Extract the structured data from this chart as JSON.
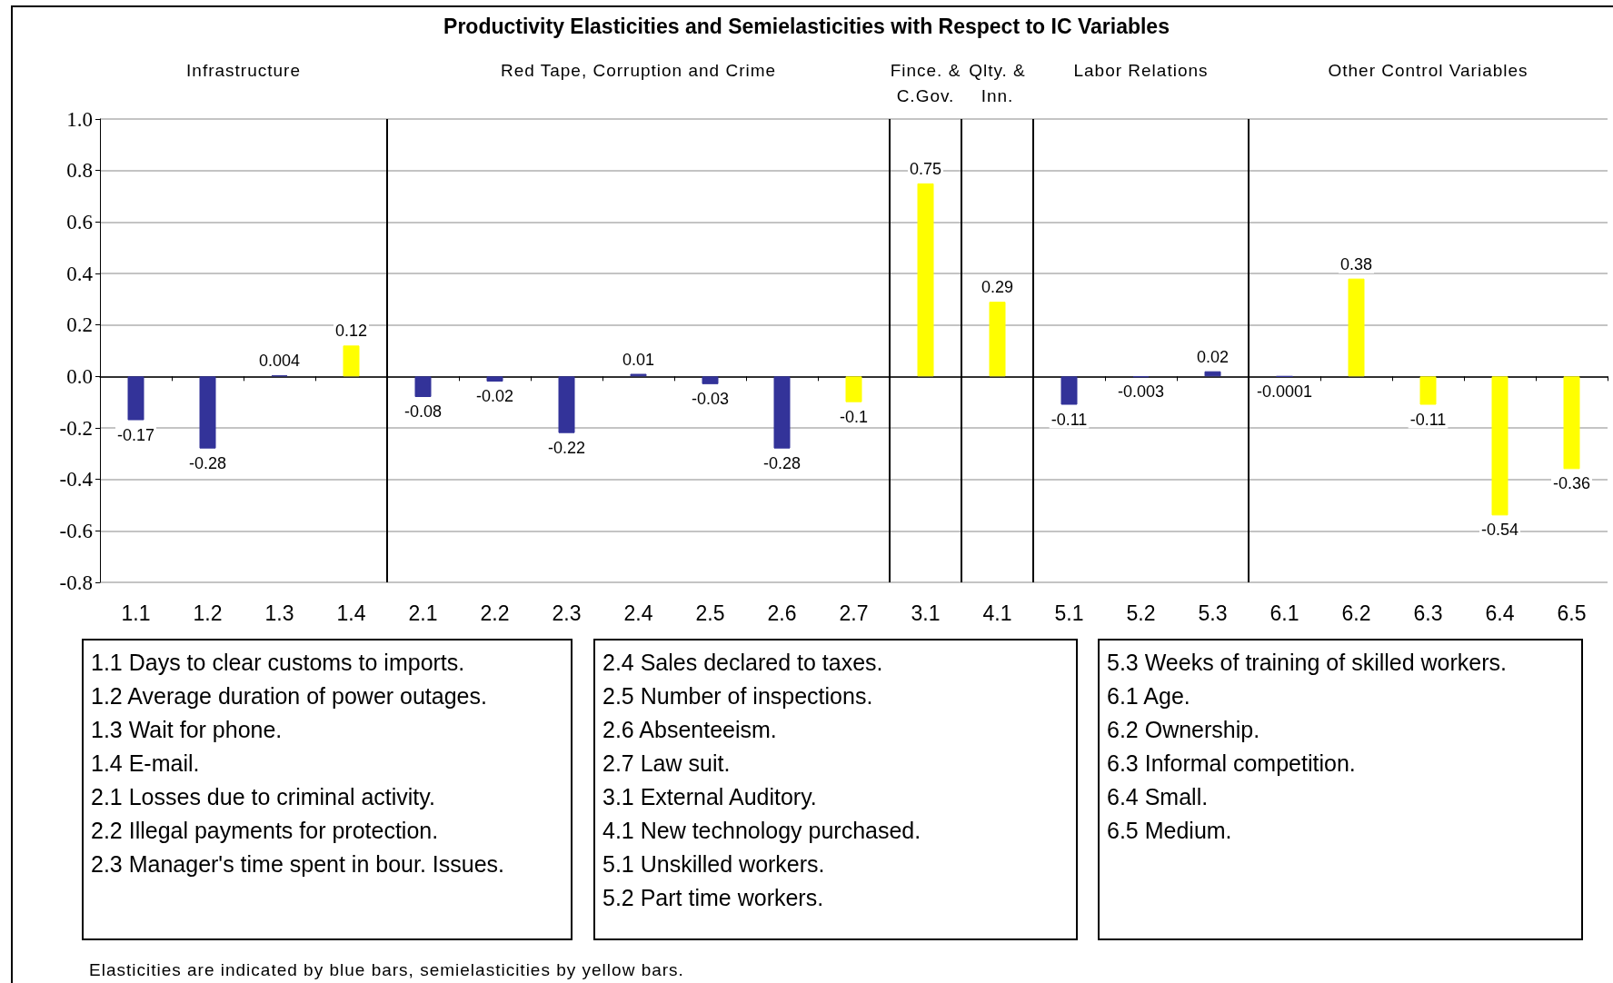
{
  "chart_data": {
    "type": "bar",
    "title": "Productivity Elasticities and Semielasticities with Respect to IC Variables",
    "categories": [
      "1.1",
      "1.2",
      "1.3",
      "1.4",
      "2.1",
      "2.2",
      "2.3",
      "2.4",
      "2.5",
      "2.6",
      "2.7",
      "3.1",
      "4.1",
      "5.1",
      "5.2",
      "5.3",
      "6.1",
      "6.2",
      "6.3",
      "6.4",
      "6.5"
    ],
    "values": [
      -0.17,
      -0.28,
      0.004,
      0.12,
      -0.08,
      -0.02,
      -0.22,
      0.01,
      -0.03,
      -0.28,
      -0.1,
      0.75,
      0.29,
      -0.11,
      -0.003,
      0.02,
      -0.0001,
      0.38,
      -0.11,
      -0.54,
      -0.36
    ],
    "colors": [
      "#333399",
      "#333399",
      "#333399",
      "#ffff00",
      "#333399",
      "#333399",
      "#333399",
      "#333399",
      "#333399",
      "#333399",
      "#ffff00",
      "#ffff00",
      "#ffff00",
      "#333399",
      "#333399",
      "#333399",
      "#333399",
      "#ffff00",
      "#ffff00",
      "#ffff00",
      "#ffff00"
    ],
    "data_labels": true,
    "ylim": [
      -0.8,
      1.0
    ],
    "yticks": [
      {
        "value": -0.8,
        "label": "-0.8"
      },
      {
        "value": -0.6,
        "label": "-0.6"
      },
      {
        "value": -0.4,
        "label": "-0.4"
      },
      {
        "value": -0.2,
        "label": "-0.2"
      },
      {
        "value": 0,
        "label": "0.0"
      },
      {
        "value": 0.2,
        "label": "0.2"
      },
      {
        "value": 0.4,
        "label": "0.4"
      },
      {
        "value": 0.6,
        "label": "0.6"
      },
      {
        "value": 0.8,
        "label": "0.8"
      },
      {
        "value": 1.0,
        "label": "1.0"
      }
    ],
    "grid": "y",
    "annotations": [
      "Infrastructure",
      "Red Tape, Corruption and Crime",
      "Fince. &\nC.Gov.",
      "Qlty. &\nInn.",
      "Labor Relations",
      "Other Control Variables",
      "1.1 Days to clear customs to imports.\n1.2 Average duration of power outages.\n1.3 Wait for phone.\n1.4 E-mail.\n2.1 Losses due to criminal activity.\n2.2 Illegal payments for protection.\n2.3 Manager's time spent in bour. Issues.",
      "2.4 Sales declared to taxes.\n2.5 Number of inspections.\n2.6 Absenteeism.\n2.7 Law suit.\n3.1 External Auditory.\n4.1 New technology purchased.\n5.1 Unskilled workers.\n5.2 Part time workers.",
      "5.3 Weeks of training of skilled workers.\n6.1 Age.\n6.2 Ownership.\n6.3 Informal competition.\n6.4 Small.\n6.5 Medium.",
      "Elasticities are indicated by blue bars, semielasticities by yellow bars."
    ]
  }
}
